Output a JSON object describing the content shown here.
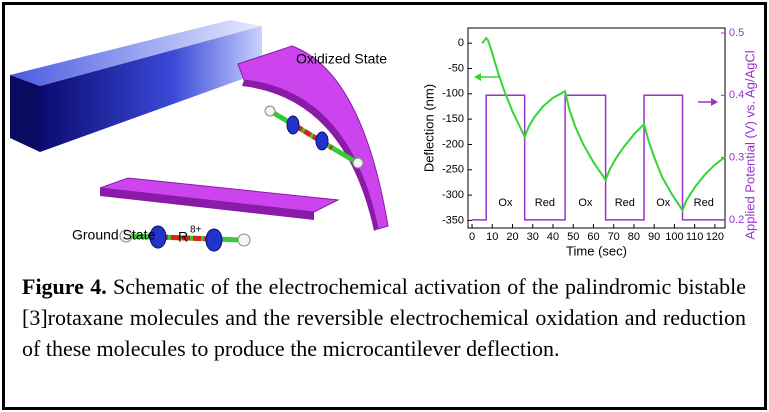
{
  "schematic": {
    "oxidized_label": "Oxidized State",
    "ground_label": "Ground State",
    "molecule_label": "R",
    "molecule_charge": "8+"
  },
  "chart_data": {
    "type": "line",
    "x_label": "Time (sec)",
    "y_label": "Deflection (nm)",
    "y2_label": "Applied Potential (V) vs. Ag/AgCl",
    "xlim": [
      -2,
      125
    ],
    "xticks": [
      0,
      10,
      20,
      30,
      40,
      50,
      60,
      70,
      80,
      90,
      100,
      110,
      120
    ],
    "ylim": [
      -365,
      30
    ],
    "yticks": [
      0,
      -50,
      -100,
      -150,
      -200,
      -250,
      -300,
      -350
    ],
    "y2lim": [
      0.187,
      0.508
    ],
    "y2ticks": [
      0.2,
      0.3,
      0.4,
      0.5
    ],
    "series": [
      {
        "color": "#33d633",
        "x": [
          5,
          7,
          8,
          10,
          13,
          16,
          20,
          24,
          26,
          28,
          31,
          35,
          40,
          46,
          48,
          51,
          55,
          60,
          66,
          68,
          71,
          75,
          80,
          85,
          87,
          90,
          94,
          99,
          104,
          106,
          110,
          115,
          120,
          125
        ],
        "values": [
          0,
          10,
          5,
          -20,
          -60,
          -95,
          -135,
          -168,
          -185,
          -165,
          -145,
          -125,
          -108,
          -95,
          -130,
          -165,
          -200,
          -235,
          -270,
          -250,
          -228,
          -205,
          -180,
          -160,
          -190,
          -225,
          -265,
          -300,
          -330,
          -310,
          -285,
          -260,
          -240,
          -225
        ]
      },
      {
        "color": "#9933cc",
        "axis": "y2",
        "x": [
          0,
          7,
          7,
          26,
          26,
          46,
          46,
          66,
          66,
          85,
          85,
          104,
          104,
          125
        ],
        "values": [
          0.2,
          0.2,
          0.4,
          0.4,
          0.2,
          0.2,
          0.4,
          0.4,
          0.2,
          0.2,
          0.4,
          0.4,
          0.2,
          0.2
        ]
      }
    ],
    "annotations": [
      "Ox",
      "Red",
      "Ox",
      "Red",
      "Ox",
      "Red"
    ]
  },
  "caption": {
    "label": "Figure 4.",
    "text": "Schematic of the electrochemical activation of the palindromic bistable [3]rotaxane molecules and the reversible electrochemical oxidation and reduction of these molecules to produce the microcantilever deflection."
  }
}
